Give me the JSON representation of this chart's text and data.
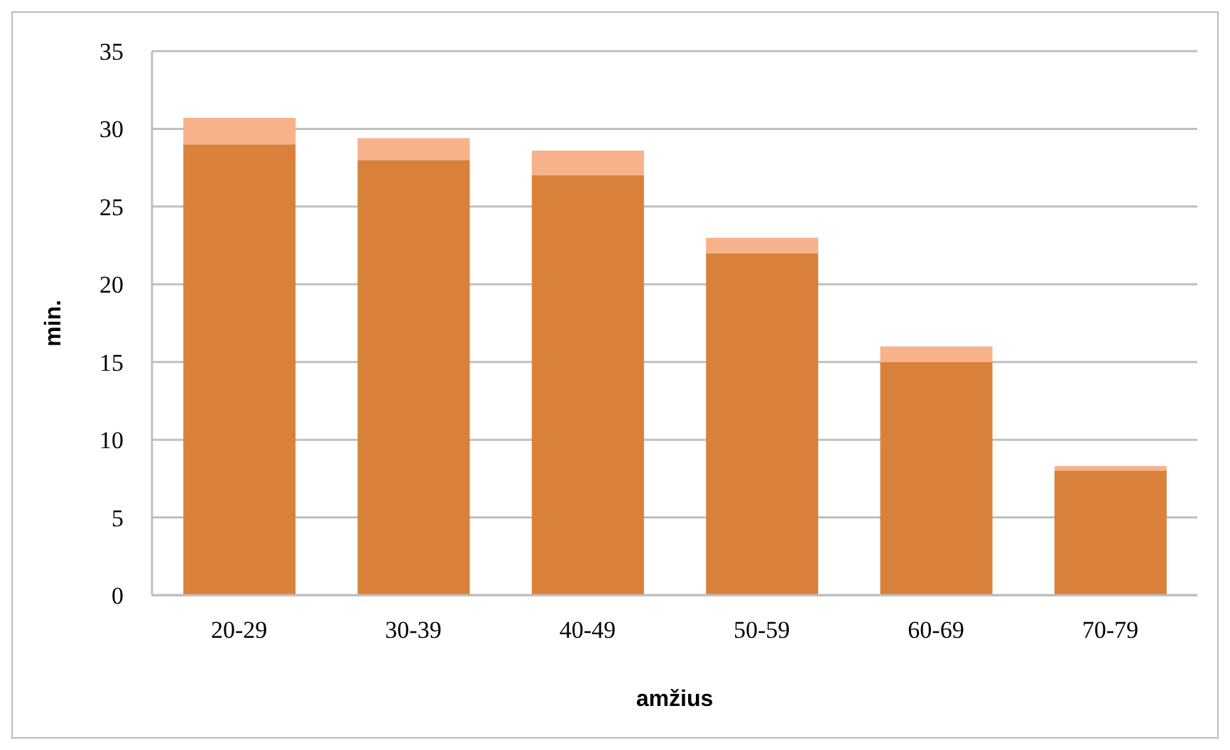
{
  "chart_data": {
    "type": "bar",
    "stacked": true,
    "xlabel": "amžius",
    "ylabel": "min.",
    "categories": [
      "20-29",
      "30-39",
      "40-49",
      "50-59",
      "60-69",
      "70-79"
    ],
    "series": [
      {
        "color": "#d9813b",
        "values": [
          29,
          28,
          27,
          22,
          15,
          8
        ]
      },
      {
        "color": "#f7b28c",
        "values": [
          1.7,
          1.4,
          1.6,
          1,
          1,
          0.3
        ]
      }
    ],
    "ylim": [
      0,
      35
    ],
    "yticks": [
      0,
      5,
      10,
      15,
      20,
      25,
      30,
      35
    ],
    "grid": "y"
  }
}
